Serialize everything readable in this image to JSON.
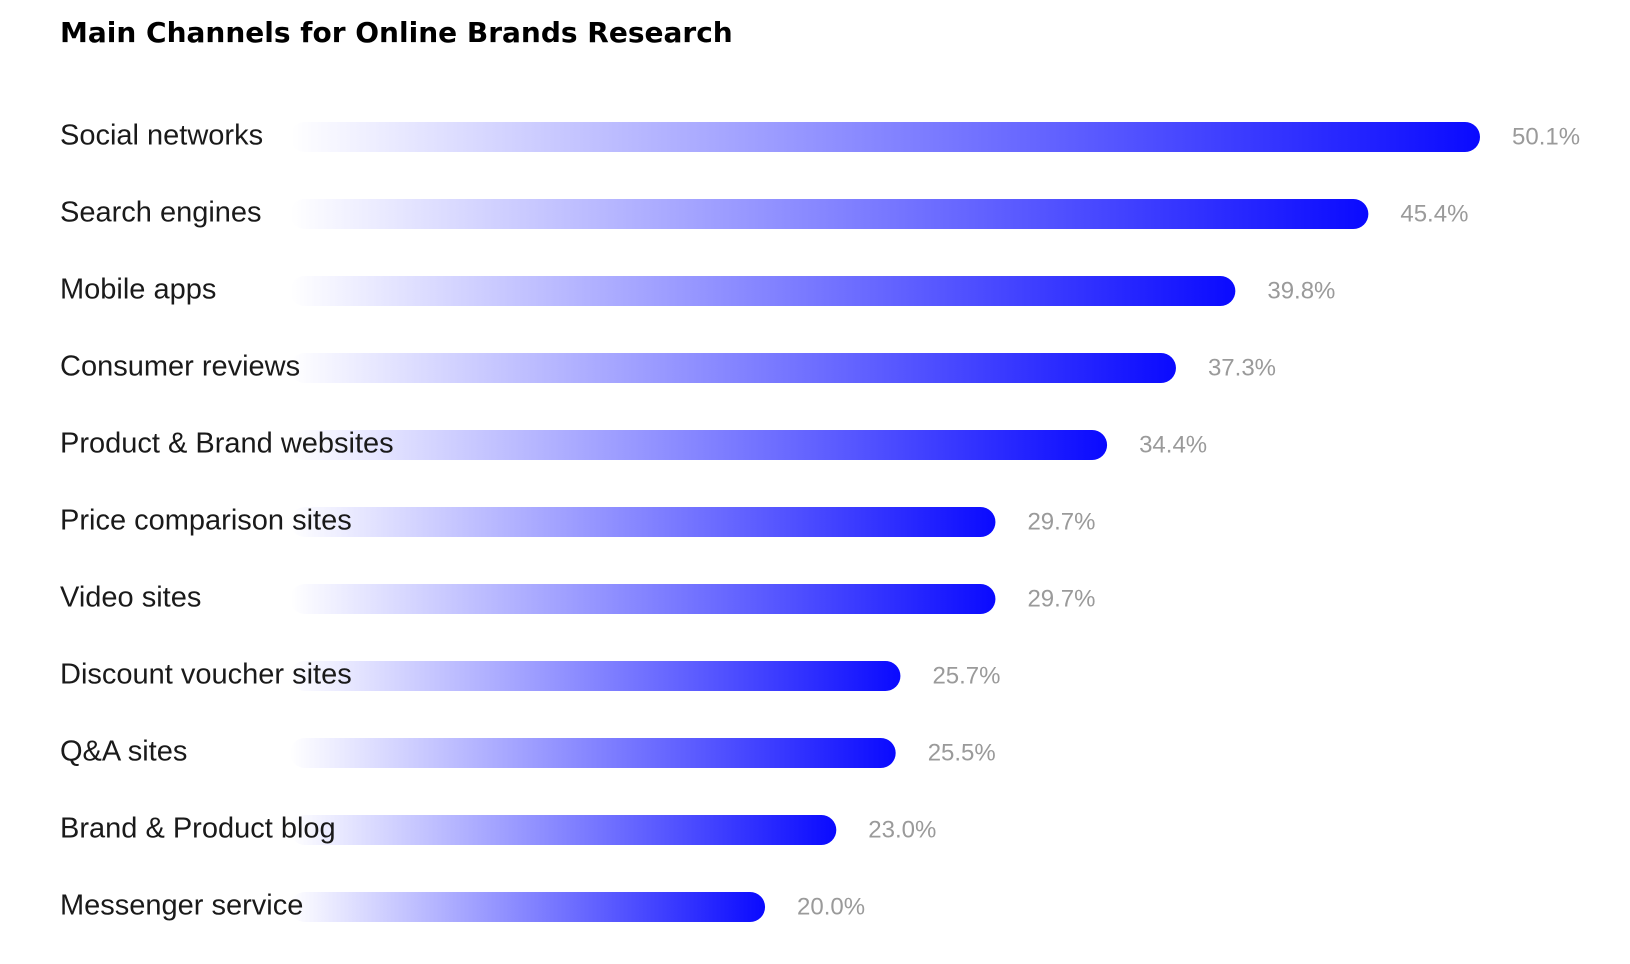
{
  "chart_data": {
    "type": "bar",
    "orientation": "horizontal",
    "title": "Main Channels for Online Brands Research",
    "categories": [
      "Social networks",
      "Search engines",
      "Mobile apps",
      "Consumer reviews",
      "Product & Brand websites",
      "Price comparison sites",
      "Video sites",
      "Discount voucher sites",
      "Q&A sites",
      "Brand & Product blog",
      "Messenger service"
    ],
    "values": [
      50.1,
      45.4,
      39.8,
      37.3,
      34.4,
      29.7,
      29.7,
      25.7,
      25.5,
      23.0,
      20.0
    ],
    "value_labels": [
      "50.1%",
      "45.4%",
      "39.8%",
      "37.3%",
      "34.4%",
      "29.7%",
      "29.7%",
      "25.7%",
      "25.5%",
      "23.0%",
      "20.0%"
    ],
    "color": "#0a0aff"
  }
}
